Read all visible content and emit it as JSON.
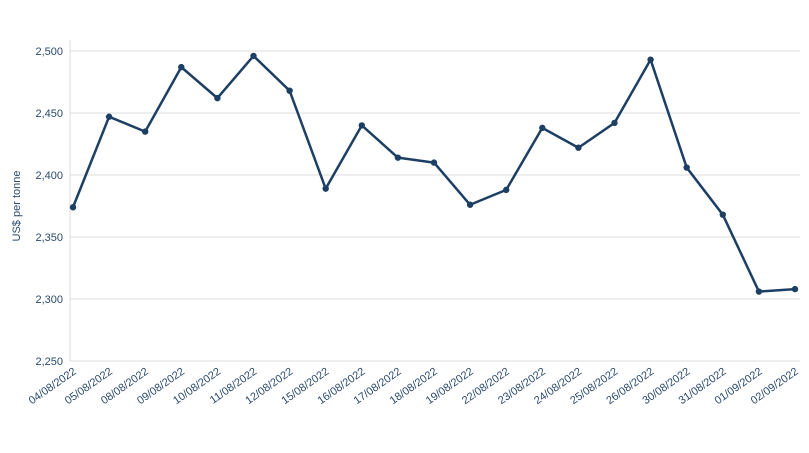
{
  "chart_data": {
    "type": "line",
    "y_label": "US$ per tonne",
    "categories": [
      "04/08/2022",
      "05/08/2022",
      "08/08/2022",
      "09/08/2022",
      "10/08/2022",
      "11/08/2022",
      "12/08/2022",
      "15/08/2022",
      "16/08/2022",
      "17/08/2022",
      "18/08/2022",
      "19/08/2022",
      "22/08/2022",
      "23/08/2022",
      "24/08/2022",
      "25/08/2022",
      "26/08/2022",
      "30/08/2022",
      "31/08/2022",
      "01/09/2022",
      "02/09/2022"
    ],
    "series": [
      {
        "color": "#1d3f63",
        "values": [
          2374,
          2447,
          2435,
          2487,
          2462,
          2496,
          2468,
          2389,
          2440,
          2414,
          2410,
          2376,
          2388,
          2438,
          2422,
          2442,
          2493,
          2406,
          2368,
          2306,
          2308
        ]
      }
    ],
    "ylim": [
      2250,
      2500
    ],
    "yticks": [
      {
        "value": 2250,
        "label": "2,250"
      },
      {
        "value": 2300,
        "label": "2,300"
      },
      {
        "value": 2350,
        "label": "2,350"
      },
      {
        "value": 2400,
        "label": "2,400"
      },
      {
        "value": 2450,
        "label": "2,450"
      },
      {
        "value": 2500,
        "label": "2,500"
      }
    ],
    "grid": true
  }
}
